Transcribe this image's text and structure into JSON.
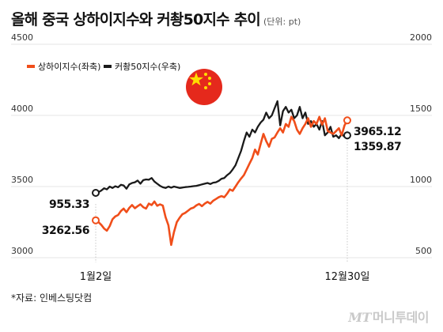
{
  "title": "올해 중국 상하이지수와 커촹50지수 추이",
  "unit_note": "(단위: pt)",
  "source": "*자료: 인베스팅닷컴",
  "logo": {
    "mark": "MT",
    "name": "머니투데이"
  },
  "colors": {
    "shanghai": "#f04e1a",
    "star50": "#1a1a1a",
    "flag_red": "#e5291c",
    "flag_star": "#ffde00",
    "grid": "#dddddd"
  },
  "chart_data": {
    "type": "line",
    "title": "올해 중국 상하이지수와 커촹50지수 추이",
    "x_start_label": "1월2일",
    "x_end_label": "12월30일",
    "y_left": {
      "ticks": [
        3000,
        3500,
        4000,
        4500
      ],
      "range": [
        3000,
        4500
      ]
    },
    "y_right": {
      "ticks": [
        500,
        1000,
        1500,
        2000
      ],
      "range": [
        500,
        2000
      ]
    },
    "legend_position": "top-left",
    "series": [
      {
        "name": "상하이지수(좌축)",
        "axis": "left",
        "start_label": "3262.56",
        "end_label": "3965.12",
        "values": [
          3262.56,
          3250,
          3230,
          3205,
          3190,
          3222,
          3270,
          3290,
          3300,
          3328,
          3345,
          3320,
          3350,
          3370,
          3348,
          3362,
          3375,
          3355,
          3345,
          3380,
          3370,
          3395,
          3365,
          3375,
          3366,
          3285,
          3228,
          3090,
          3180,
          3250,
          3280,
          3305,
          3315,
          3330,
          3345,
          3352,
          3368,
          3378,
          3362,
          3380,
          3392,
          3380,
          3400,
          3412,
          3425,
          3433,
          3425,
          3450,
          3480,
          3470,
          3500,
          3530,
          3556,
          3580,
          3620,
          3660,
          3700,
          3760,
          3725,
          3800,
          3870,
          3820,
          3780,
          3835,
          3845,
          3880,
          3910,
          3880,
          3940,
          3920,
          3990,
          3960,
          3900,
          3870,
          3910,
          3940,
          3980,
          3920,
          3960,
          3940,
          3990,
          3935,
          3980,
          3890,
          3880,
          3870,
          3890,
          3910,
          3860,
          3930,
          3965.12
        ]
      },
      {
        "name": "커촹50지수(우축)",
        "axis": "right",
        "start_label": "955.33",
        "end_label": "1359.87",
        "values": [
          955.33,
          960,
          972,
          988,
          980,
          1000,
          990,
          1002,
          995,
          1012,
          1008,
          985,
          1015,
          1025,
          1030,
          1042,
          1020,
          1045,
          1050,
          1048,
          1060,
          1035,
          1020,
          1005,
          995,
          990,
          1000,
          992,
          1000,
          995,
          990,
          993,
          996,
          998,
          1000,
          1003,
          1005,
          1010,
          1015,
          1020,
          1025,
          1018,
          1027,
          1030,
          1040,
          1055,
          1060,
          1080,
          1095,
          1120,
          1150,
          1200,
          1250,
          1320,
          1380,
          1350,
          1400,
          1380,
          1420,
          1450,
          1470,
          1520,
          1480,
          1500,
          1550,
          1600,
          1430,
          1530,
          1560,
          1520,
          1540,
          1480,
          1500,
          1560,
          1480,
          1520,
          1440,
          1460,
          1420,
          1440,
          1400,
          1460,
          1360,
          1380,
          1420,
          1350,
          1360,
          1340,
          1370,
          1350,
          1359.87
        ]
      }
    ]
  }
}
